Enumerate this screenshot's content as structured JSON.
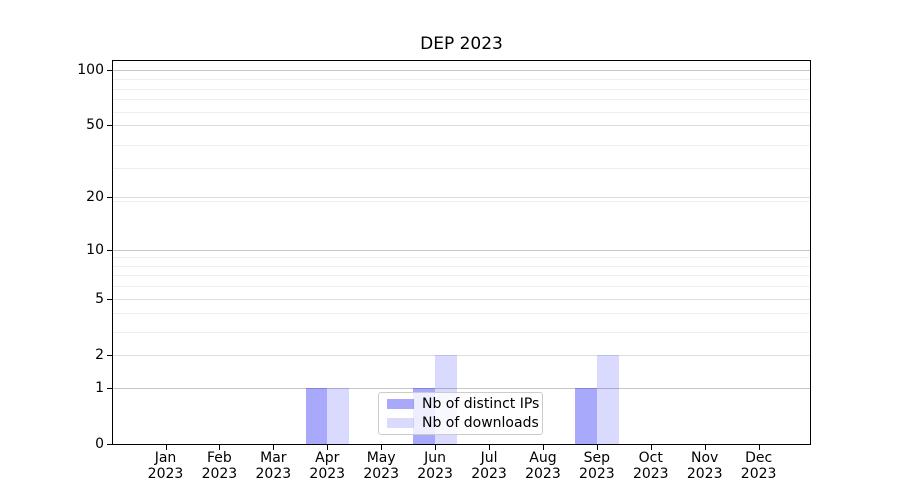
{
  "chart_data": {
    "type": "bar",
    "title": "DEP 2023",
    "xlabel": "",
    "ylabel": "",
    "categories": [
      "Jan",
      "Feb",
      "Mar",
      "Apr",
      "May",
      "Jun",
      "Jul",
      "Aug",
      "Sep",
      "Oct",
      "Nov",
      "Dec"
    ],
    "category_year": "2023",
    "series": [
      {
        "name": "Nb of distinct IPs",
        "color": "rgba(10,10,245,0.35)",
        "values": [
          0,
          0,
          0,
          1,
          0,
          1,
          0,
          0,
          1,
          0,
          0,
          0
        ]
      },
      {
        "name": "Nb of downloads",
        "color": "rgba(10,10,245,0.15)",
        "values": [
          0,
          0,
          0,
          1,
          0,
          2,
          0,
          0,
          2,
          0,
          0,
          0
        ]
      }
    ],
    "yscale": {
      "type": "log1p",
      "note": "y position proportional to log10(1+value)",
      "decades_visible": 2.051
    },
    "ylim": [
      0,
      112
    ],
    "yticks": [
      {
        "value": 0,
        "label": "0",
        "strong": false
      },
      {
        "value": 1,
        "label": "1",
        "strong": true
      },
      {
        "value": 2,
        "label": "2",
        "strong": false
      },
      {
        "value": 5,
        "label": "5",
        "strong": false
      },
      {
        "value": 10,
        "label": "10",
        "strong": true
      },
      {
        "value": 20,
        "label": "20",
        "strong": false
      },
      {
        "value": 50,
        "label": "50",
        "strong": false
      },
      {
        "value": 100,
        "label": "100",
        "strong": true
      }
    ],
    "minor_gridline_log_positions": [
      4,
      5,
      7,
      8,
      9,
      10,
      20,
      30,
      40,
      60,
      70,
      80,
      90
    ],
    "grid": true,
    "legend_position": "lower center",
    "colors": {
      "axis": "#000000",
      "grid_strong": "#c6c6c6",
      "grid_major": "#dedede",
      "grid_minor": "#efefef",
      "background": "#ffffff"
    }
  }
}
